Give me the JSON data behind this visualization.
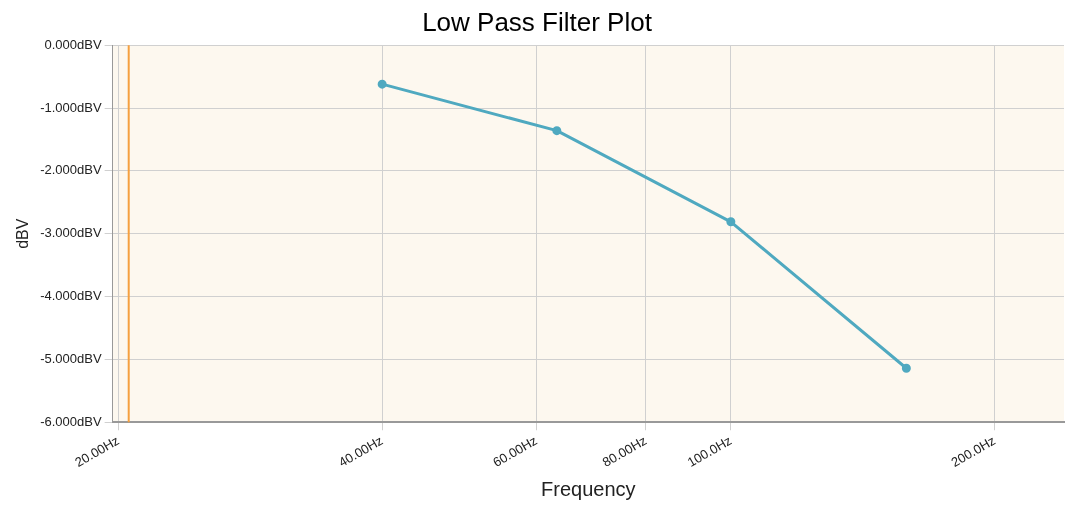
{
  "chart_data": {
    "type": "line",
    "title": "Low Pass Filter Plot",
    "xlabel": "Frequency",
    "ylabel": "dBV",
    "log": "x",
    "x": [
      40,
      63.3,
      100,
      158.6
    ],
    "series": [
      {
        "color": "#4fa9c0",
        "values": [
          -0.62,
          -1.36,
          -2.81,
          -5.14
        ]
      }
    ],
    "xlim": [
      19.7,
      240
    ],
    "xticks": [
      {
        "value": 20,
        "label": "20.00Hz"
      },
      {
        "value": 40,
        "label": "40.00Hz"
      },
      {
        "value": 60,
        "label": "60.00Hz"
      },
      {
        "value": 80,
        "label": "80.00Hz"
      },
      {
        "value": 100,
        "label": "100.0Hz"
      },
      {
        "value": 200,
        "label": "200.0Hz"
      }
    ],
    "ylim": [
      -6,
      0
    ],
    "yticks": [
      {
        "value": 0,
        "label": "0.000dBV"
      },
      {
        "value": -1,
        "label": "-1.000dBV"
      },
      {
        "value": -2,
        "label": "-2.000dBV"
      },
      {
        "value": -3,
        "label": "-3.000dBV"
      },
      {
        "value": -4,
        "label": "-4.000dBV"
      },
      {
        "value": -5,
        "label": "-5.000dBV"
      },
      {
        "value": -6,
        "label": "-6.000dBV"
      }
    ],
    "ref_lines": [
      {
        "axis": "x",
        "value": 20.55,
        "color": "#f5a040"
      }
    ],
    "grid": true,
    "marker": "circle",
    "line_style": "solid",
    "legend": false
  }
}
